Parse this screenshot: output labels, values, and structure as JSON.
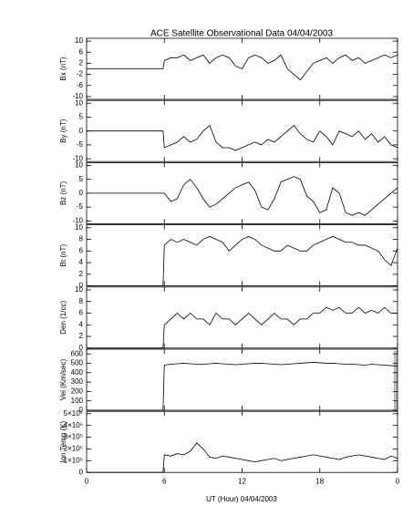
{
  "chart_data": [
    {
      "type": "line",
      "title": "ACE Satellite Observational Data   04/04/2003",
      "ylabel": "Bx (nT)",
      "color": "#000000",
      "x": [
        0,
        5.9,
        6,
        6.5,
        7,
        7.5,
        8,
        8.5,
        9,
        9.5,
        10,
        10.5,
        11,
        11.5,
        12,
        12.5,
        13,
        13.5,
        14,
        14.5,
        15,
        15.5,
        16,
        16.5,
        17,
        17.5,
        18,
        18.5,
        19,
        19.5,
        20,
        20.5,
        21,
        21.5,
        22,
        22.5,
        23,
        23.5,
        24
      ],
      "values": [
        0,
        0,
        3,
        4,
        4,
        5,
        3,
        4,
        5,
        2,
        4,
        5,
        4,
        1,
        0,
        4,
        5,
        4,
        2,
        3,
        5,
        0,
        -2,
        -4,
        -1,
        2,
        3,
        4,
        2,
        4,
        5,
        3,
        4,
        2,
        3,
        4,
        5,
        4,
        5
      ],
      "ylim": [
        -11,
        11
      ],
      "yticks": [
        -10,
        -6,
        -2,
        2,
        6,
        10
      ]
    },
    {
      "type": "line",
      "ylabel": "By (nT)",
      "color": "#000000",
      "x": [
        0,
        5.9,
        6,
        6.5,
        7,
        7.5,
        8,
        8.5,
        9,
        9.5,
        10,
        10.5,
        11,
        11.5,
        12,
        12.5,
        13,
        13.5,
        14,
        14.5,
        15,
        15.5,
        16,
        16.5,
        17,
        17.5,
        18,
        18.5,
        19,
        19.5,
        20,
        20.5,
        21,
        21.5,
        22,
        22.5,
        23,
        23.5,
        24
      ],
      "values": [
        0,
        0,
        -6,
        -5,
        -4,
        -2,
        -4,
        -3,
        0,
        2,
        -4,
        -6,
        -6,
        -7,
        -6,
        -5,
        -4,
        -5,
        -3,
        -4,
        -2,
        0,
        2,
        -1,
        -3,
        -4,
        0,
        -2,
        -5,
        0,
        -1,
        -2,
        0,
        -3,
        -1,
        -4,
        -2,
        -5,
        -6
      ],
      "ylim": [
        -11,
        11
      ],
      "yticks": [
        -10,
        -5,
        0,
        5,
        10
      ]
    },
    {
      "type": "line",
      "ylabel": "Bz (nT)",
      "color": "#000000",
      "x": [
        0,
        5.9,
        6,
        6.5,
        7,
        7.5,
        8,
        8.5,
        9,
        9.5,
        10,
        10.5,
        11,
        11.5,
        12,
        12.5,
        13,
        13.5,
        14,
        14.5,
        15,
        15.5,
        16,
        16.5,
        17,
        17.5,
        18,
        18.5,
        19,
        19.5,
        20,
        20.5,
        21,
        21.5,
        22,
        22.5,
        23,
        23.5,
        24
      ],
      "values": [
        0,
        0,
        0,
        -3,
        -2,
        3,
        5,
        2,
        -2,
        -5,
        -4,
        -2,
        0,
        2,
        3,
        4,
        1,
        -5,
        -6,
        -2,
        4,
        5,
        6,
        5,
        -1,
        -3,
        -7,
        -6,
        2,
        0,
        -7,
        -8,
        -7,
        -8,
        -6,
        -4,
        -2,
        0,
        2
      ],
      "ylim": [
        -11,
        11
      ],
      "yticks": [
        -10,
        -5,
        0,
        5,
        10
      ]
    },
    {
      "type": "line",
      "ylabel": "Bt (nT)",
      "color": "#000000",
      "x": [
        0,
        5.9,
        6,
        6.5,
        7,
        7.5,
        8,
        8.5,
        9,
        9.5,
        10,
        10.5,
        11,
        11.5,
        12,
        12.5,
        13,
        13.5,
        14,
        14.5,
        15,
        15.5,
        16,
        16.5,
        17,
        17.5,
        18,
        18.5,
        19,
        19.5,
        20,
        20.5,
        21,
        21.5,
        22,
        22.5,
        23,
        23.5,
        24
      ],
      "values": [
        0,
        0,
        7,
        8,
        7.5,
        8,
        7.5,
        7,
        8,
        8.5,
        8,
        7.5,
        6,
        7,
        8,
        8.5,
        8,
        7,
        6.5,
        6,
        6,
        7,
        6.5,
        6,
        6,
        7,
        7.5,
        8,
        8.5,
        8,
        7.5,
        7.5,
        7,
        7,
        6.5,
        6,
        4.5,
        3.5,
        6.5
      ],
      "ylim": [
        0,
        10.5
      ],
      "yticks": [
        0,
        2,
        4,
        6,
        8,
        10
      ]
    },
    {
      "type": "line",
      "ylabel": "Den (1/cc)",
      "color": "#000000",
      "x": [
        0,
        5.9,
        6,
        6.5,
        7,
        7.5,
        8,
        8.5,
        9,
        9.5,
        10,
        10.5,
        11,
        11.5,
        12,
        12.5,
        13,
        13.5,
        14,
        14.5,
        15,
        15.5,
        16,
        16.5,
        17,
        17.5,
        18,
        18.5,
        19,
        19.5,
        20,
        20.5,
        21,
        21.5,
        22,
        22.5,
        23,
        23.5,
        24
      ],
      "values": [
        0,
        0,
        4,
        5,
        6,
        5,
        6,
        5,
        5,
        4,
        6,
        5,
        5,
        4,
        5,
        6,
        5,
        4,
        5,
        6,
        5,
        5,
        4,
        5,
        5,
        6,
        6,
        7,
        6.5,
        7,
        6,
        6,
        7,
        6,
        6.5,
        6,
        7,
        6,
        6
      ],
      "ylim": [
        0,
        10.5
      ],
      "yticks": [
        0,
        2,
        4,
        6,
        8,
        10
      ]
    },
    {
      "type": "line",
      "ylabel": "Vel (Km/sec)",
      "color": "#000000",
      "x": [
        0,
        5.9,
        6,
        6.5,
        7,
        7.5,
        8,
        8.5,
        9,
        9.5,
        10,
        10.5,
        11,
        11.5,
        12,
        12.5,
        13,
        13.5,
        14,
        14.5,
        15,
        15.5,
        16,
        16.5,
        17,
        17.5,
        18,
        18.5,
        19,
        19.5,
        20,
        20.5,
        21,
        21.5,
        22,
        22.5,
        23,
        23.5,
        24
      ],
      "values": [
        0,
        0,
        480,
        490,
        495,
        500,
        495,
        490,
        490,
        495,
        500,
        495,
        490,
        485,
        490,
        495,
        500,
        500,
        495,
        490,
        485,
        490,
        495,
        500,
        505,
        510,
        505,
        500,
        500,
        495,
        490,
        490,
        485,
        480,
        490,
        485,
        480,
        475,
        470
      ],
      "ylim": [
        0,
        650
      ],
      "yticks": [
        0,
        100,
        200,
        300,
        400,
        500,
        600
      ]
    },
    {
      "type": "line",
      "ylabel": "Ion Temp (K)",
      "xlabel": "UT (Hour)  04/04/2003",
      "color": "#000000",
      "x": [
        0,
        5.9,
        6,
        6.5,
        7,
        7.5,
        8,
        8.5,
        9,
        9.5,
        10,
        10.5,
        11,
        11.5,
        12,
        12.5,
        13,
        13.5,
        14,
        14.5,
        15,
        15.5,
        16,
        16.5,
        17,
        17.5,
        18,
        18.5,
        19,
        19.5,
        20,
        20.5,
        21,
        21.5,
        22,
        22.5,
        23,
        23.5,
        24
      ],
      "values": [
        0,
        0,
        150000,
        140000,
        160000,
        150000,
        180000,
        250000,
        200000,
        130000,
        120000,
        140000,
        130000,
        120000,
        110000,
        100000,
        90000,
        100000,
        110000,
        120000,
        100000,
        110000,
        120000,
        130000,
        140000,
        150000,
        140000,
        130000,
        120000,
        110000,
        130000,
        140000,
        150000,
        140000,
        130000,
        120000,
        110000,
        140000,
        120000
      ],
      "ylim": [
        0,
        520000
      ],
      "yticks": [
        0,
        {
          "value": 100000,
          "label": "1×10⁵"
        },
        {
          "value": 200000,
          "label": "2×10⁵"
        },
        {
          "value": 300000,
          "label": "3×10⁵"
        },
        {
          "value": 400000,
          "label": "4×10⁵"
        },
        {
          "value": 500000,
          "label": "5×10⁵"
        }
      ],
      "xlim": [
        0,
        24
      ],
      "xticks": [
        0,
        6,
        12,
        18,
        {
          "value": 24,
          "label": "0"
        }
      ]
    }
  ]
}
